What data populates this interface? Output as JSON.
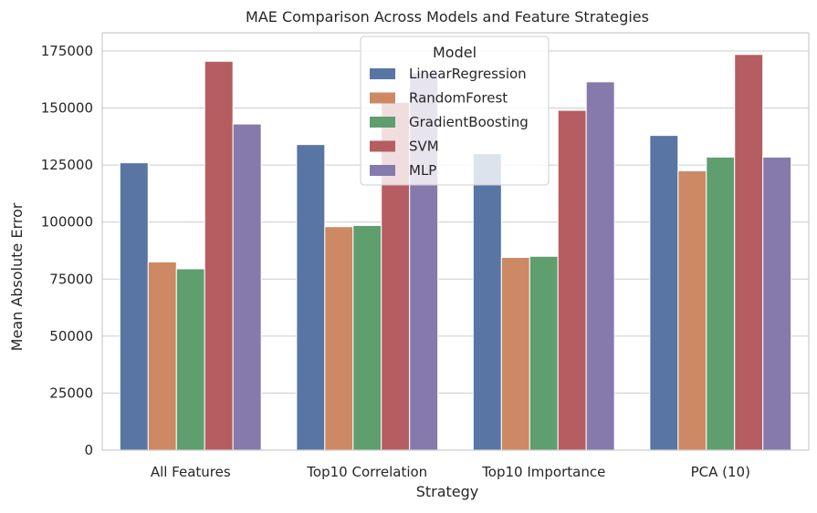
{
  "chart_data": {
    "type": "bar",
    "title": "MAE Comparison Across Models and Feature Strategies",
    "xlabel": "Strategy",
    "ylabel": "Mean Absolute Error",
    "categories": [
      "All Features",
      "Top10 Correlation",
      "Top10 Importance",
      "PCA (10)"
    ],
    "ylim": [
      0,
      183000
    ],
    "yticks": [
      0,
      25000,
      50000,
      75000,
      100000,
      125000,
      150000,
      175000
    ],
    "grid": "horizontal",
    "legend_title": "Model",
    "legend_position": "top-center",
    "series": [
      {
        "name": "LinearRegression",
        "color": "#5875a4",
        "values": [
          126000,
          134000,
          130000,
          138000
        ]
      },
      {
        "name": "RandomForest",
        "color": "#cc8963",
        "values": [
          82500,
          98000,
          84500,
          122500
        ]
      },
      {
        "name": "GradientBoosting",
        "color": "#5f9e6e",
        "values": [
          79500,
          98500,
          85000,
          128500
        ]
      },
      {
        "name": "SVM",
        "color": "#b55d60",
        "values": [
          170500,
          152500,
          149000,
          173500
        ]
      },
      {
        "name": "MLP",
        "color": "#857aab",
        "values": [
          143000,
          165500,
          161500,
          128500
        ]
      }
    ]
  }
}
